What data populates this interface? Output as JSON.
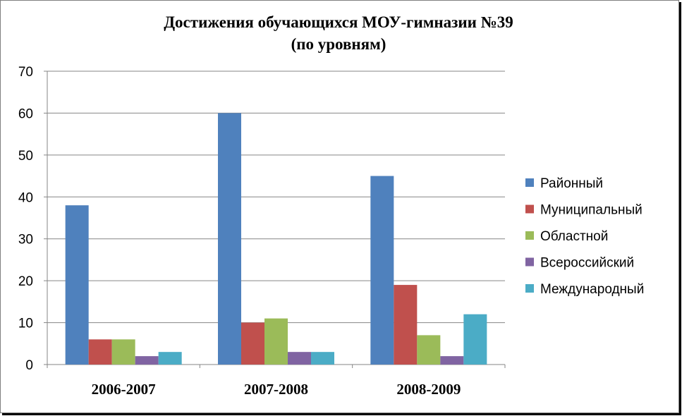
{
  "chart_data": {
    "type": "bar",
    "title": "Достижения обучающихся  МОУ-гимназии №39",
    "subtitle": "(по уровням)",
    "xlabel": "",
    "ylabel": "",
    "categories": [
      "2006-2007",
      "2007-2008",
      "2008-2009"
    ],
    "ylim": [
      0,
      70
    ],
    "yticks": [
      "0",
      "10",
      "20",
      "30",
      "40",
      "50",
      "60",
      "70"
    ],
    "grid": true,
    "legend_position": "right",
    "series": [
      {
        "name": "Районный",
        "color": "#4f81bd",
        "values": [
          38,
          60,
          45
        ]
      },
      {
        "name": "Муниципальный",
        "color": "#c0504d",
        "values": [
          6,
          10,
          19
        ]
      },
      {
        "name": "Областной",
        "color": "#9bbb59",
        "values": [
          6,
          11,
          7
        ]
      },
      {
        "name": "Всероссийский",
        "color": "#8064a2",
        "values": [
          2,
          3,
          2
        ]
      },
      {
        "name": "Международный",
        "color": "#4bacc6",
        "values": [
          3,
          3,
          12
        ]
      }
    ]
  }
}
